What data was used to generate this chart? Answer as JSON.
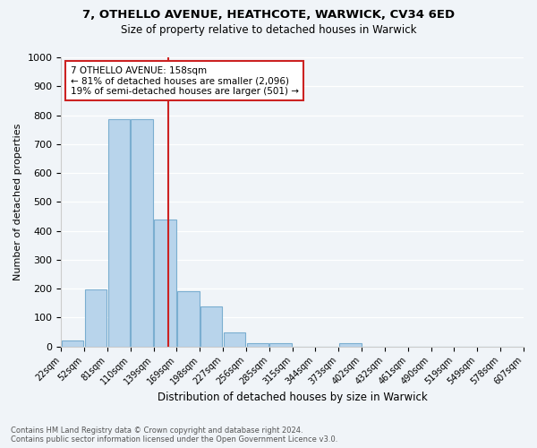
{
  "title1": "7, OTHELLO AVENUE, HEATHCOTE, WARWICK, CV34 6ED",
  "title2": "Size of property relative to detached houses in Warwick",
  "xlabel": "Distribution of detached houses by size in Warwick",
  "ylabel": "Number of detached properties",
  "bin_labels": [
    "22sqm",
    "52sqm",
    "81sqm",
    "110sqm",
    "139sqm",
    "169sqm",
    "198sqm",
    "227sqm",
    "256sqm",
    "285sqm",
    "315sqm",
    "344sqm",
    "373sqm",
    "402sqm",
    "432sqm",
    "461sqm",
    "490sqm",
    "519sqm",
    "549sqm",
    "578sqm",
    "607sqm"
  ],
  "values": [
    20,
    196,
    785,
    785,
    440,
    192,
    140,
    49,
    13,
    10,
    0,
    0,
    10,
    0,
    0,
    0,
    0,
    0,
    0,
    0
  ],
  "bar_color": "#b8d4eb",
  "bar_edge_color": "#7aaed0",
  "vline_color": "#cc2222",
  "annotation_title": "7 OTHELLO AVENUE: 158sqm",
  "annotation_line1": "← 81% of detached houses are smaller (2,096)",
  "annotation_line2": "19% of semi-detached houses are larger (501) →",
  "annotation_box_color": "white",
  "annotation_box_edge": "#cc2222",
  "ylim": [
    0,
    1000
  ],
  "yticks": [
    0,
    100,
    200,
    300,
    400,
    500,
    600,
    700,
    800,
    900,
    1000
  ],
  "footer1": "Contains HM Land Registry data © Crown copyright and database right 2024.",
  "footer2": "Contains public sector information licensed under the Open Government Licence v3.0.",
  "bg_color": "#f0f4f8",
  "grid_color": "#ffffff"
}
